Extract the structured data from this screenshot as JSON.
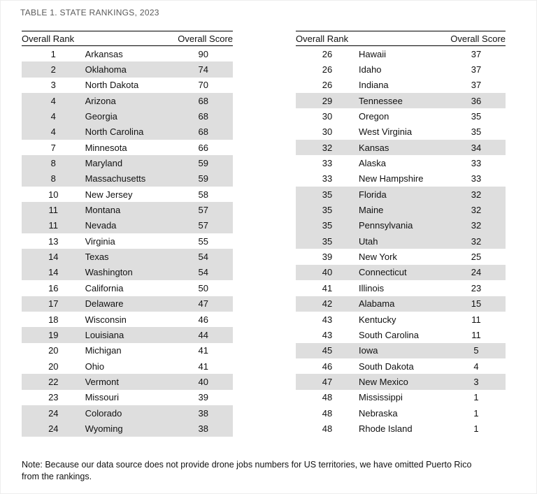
{
  "title": "TABLE 1. STATE RANKINGS, 2023",
  "columns": {
    "rank": "Overall Rank",
    "score": "Overall Score"
  },
  "tables": [
    {
      "rows": [
        {
          "rank": 1,
          "state": "Arkansas",
          "score": 90
        },
        {
          "rank": 2,
          "state": "Oklahoma",
          "score": 74
        },
        {
          "rank": 3,
          "state": "North Dakota",
          "score": 70
        },
        {
          "rank": 4,
          "state": "Arizona",
          "score": 68
        },
        {
          "rank": 4,
          "state": "Georgia",
          "score": 68
        },
        {
          "rank": 4,
          "state": "North Carolina",
          "score": 68
        },
        {
          "rank": 7,
          "state": "Minnesota",
          "score": 66
        },
        {
          "rank": 8,
          "state": "Maryland",
          "score": 59
        },
        {
          "rank": 8,
          "state": "Massachusetts",
          "score": 59
        },
        {
          "rank": 10,
          "state": "New Jersey",
          "score": 58
        },
        {
          "rank": 11,
          "state": "Montana",
          "score": 57
        },
        {
          "rank": 11,
          "state": "Nevada",
          "score": 57
        },
        {
          "rank": 13,
          "state": "Virginia",
          "score": 55
        },
        {
          "rank": 14,
          "state": "Texas",
          "score": 54
        },
        {
          "rank": 14,
          "state": "Washington",
          "score": 54
        },
        {
          "rank": 16,
          "state": "California",
          "score": 50
        },
        {
          "rank": 17,
          "state": "Delaware",
          "score": 47
        },
        {
          "rank": 18,
          "state": "Wisconsin",
          "score": 46
        },
        {
          "rank": 19,
          "state": "Louisiana",
          "score": 44
        },
        {
          "rank": 20,
          "state": "Michigan",
          "score": 41
        },
        {
          "rank": 20,
          "state": "Ohio",
          "score": 41
        },
        {
          "rank": 22,
          "state": "Vermont",
          "score": 40
        },
        {
          "rank": 23,
          "state": "Missouri",
          "score": 39
        },
        {
          "rank": 24,
          "state": "Colorado",
          "score": 38
        },
        {
          "rank": 24,
          "state": "Wyoming",
          "score": 38
        }
      ]
    },
    {
      "rows": [
        {
          "rank": 26,
          "state": "Hawaii",
          "score": 37
        },
        {
          "rank": 26,
          "state": "Idaho",
          "score": 37
        },
        {
          "rank": 26,
          "state": "Indiana",
          "score": 37
        },
        {
          "rank": 29,
          "state": "Tennessee",
          "score": 36
        },
        {
          "rank": 30,
          "state": "Oregon",
          "score": 35
        },
        {
          "rank": 30,
          "state": "West Virginia",
          "score": 35
        },
        {
          "rank": 32,
          "state": "Kansas",
          "score": 34
        },
        {
          "rank": 33,
          "state": "Alaska",
          "score": 33
        },
        {
          "rank": 33,
          "state": "New Hampshire",
          "score": 33
        },
        {
          "rank": 35,
          "state": "Florida",
          "score": 32
        },
        {
          "rank": 35,
          "state": "Maine",
          "score": 32
        },
        {
          "rank": 35,
          "state": "Pennsylvania",
          "score": 32
        },
        {
          "rank": 35,
          "state": "Utah",
          "score": 32
        },
        {
          "rank": 39,
          "state": "New York",
          "score": 25
        },
        {
          "rank": 40,
          "state": "Connecticut",
          "score": 24
        },
        {
          "rank": 41,
          "state": "Illinois",
          "score": 23
        },
        {
          "rank": 42,
          "state": "Alabama",
          "score": 15
        },
        {
          "rank": 43,
          "state": "Kentucky",
          "score": 11
        },
        {
          "rank": 43,
          "state": "South Carolina",
          "score": 11
        },
        {
          "rank": 45,
          "state": "Iowa",
          "score": 5
        },
        {
          "rank": 46,
          "state": "South Dakota",
          "score": 4
        },
        {
          "rank": 47,
          "state": "New Mexico",
          "score": 3
        },
        {
          "rank": 48,
          "state": "Mississippi",
          "score": 1
        },
        {
          "rank": 48,
          "state": "Nebraska",
          "score": 1
        },
        {
          "rank": 48,
          "state": "Rhode Island",
          "score": 1
        }
      ]
    }
  ],
  "note": {
    "line1": "Note: Because our data source does not provide drone jobs numbers for US territories, we have omitted Puerto Rico",
    "line2": "from the rankings."
  },
  "colors": {
    "shaded_row": "#dedede",
    "title_text": "#595959",
    "table_border": "#000000"
  }
}
